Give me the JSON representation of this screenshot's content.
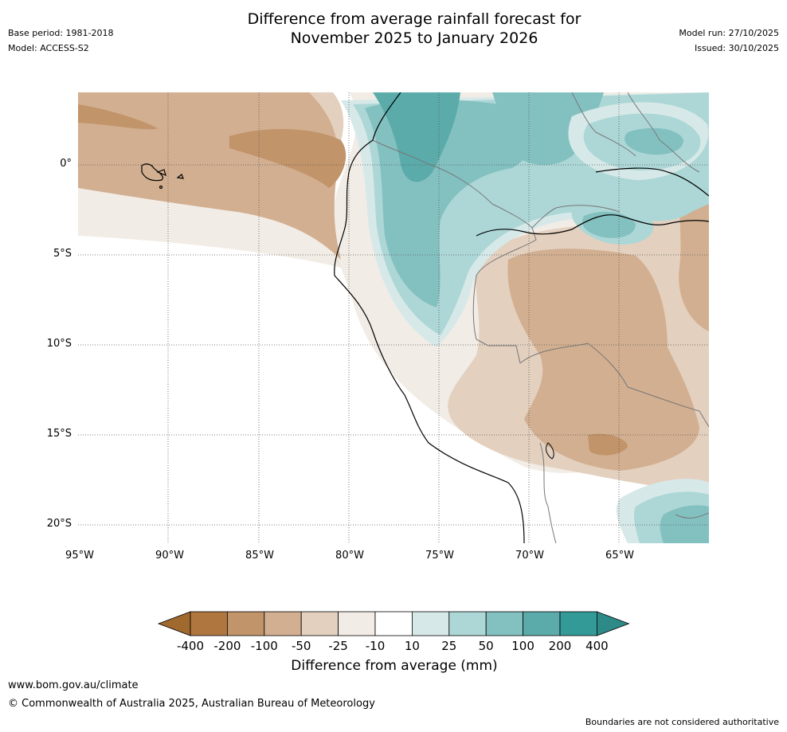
{
  "header": {
    "base_period": "Base period: 1981-2018",
    "model": "Model: ACCESS-S2",
    "title_line1": "Difference from average rainfall forecast for",
    "title_line2": "November 2025 to January 2026",
    "model_run": "Model run: 27/10/2025",
    "issued": "Issued: 30/10/2025"
  },
  "map": {
    "lat_labels": [
      "0°",
      "5°S",
      "10°S",
      "15°S",
      "20°S"
    ],
    "lon_labels": [
      "95°W",
      "90°W",
      "85°W",
      "80°W",
      "75°W",
      "70°W",
      "65°W"
    ]
  },
  "colorbar": {
    "ticks": [
      "-400",
      "-200",
      "-100",
      "-50",
      "-25",
      "-10",
      "10",
      "25",
      "50",
      "100",
      "200",
      "400"
    ],
    "colors": [
      "#a0692e",
      "#b07640",
      "#c1946a",
      "#d2af90",
      "#e3d0bf",
      "#f2ece6",
      "#ffffff",
      "#d6e9e8",
      "#add7d6",
      "#83c1c0",
      "#5aabaa",
      "#349a97",
      "#2e8a87"
    ],
    "title": "Difference from average (mm)"
  },
  "footer": {
    "url": "www.bom.gov.au/climate",
    "copyright": "© Commonwealth of Australia 2025, Australian Bureau of Meteorology",
    "disclaimer": "Boundaries are not considered authoritative"
  }
}
